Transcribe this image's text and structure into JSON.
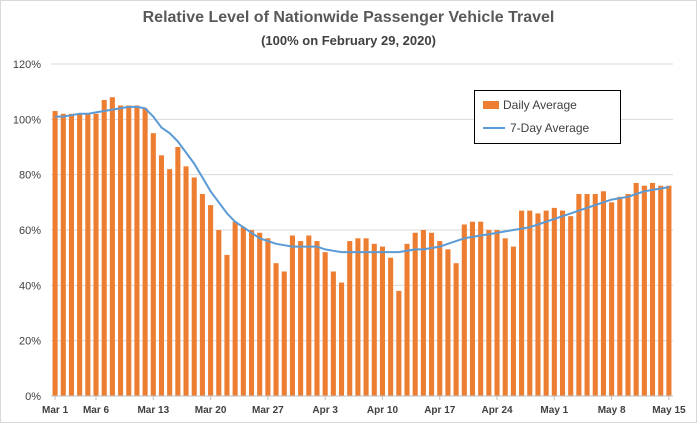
{
  "chart_data": {
    "type": "bar",
    "title": "Relative Level of Nationwide Passenger Vehicle Travel",
    "subtitle": "(100% on February 29, 2020)",
    "ylim": [
      0,
      120
    ],
    "yticks": [
      0,
      20,
      40,
      60,
      80,
      100,
      120
    ],
    "ytick_labels": [
      "0%",
      "20%",
      "40%",
      "60%",
      "80%",
      "100%",
      "120%"
    ],
    "xtick_labels": [
      {
        "label": "Mar 1",
        "index": 0
      },
      {
        "label": "Mar 6",
        "index": 5
      },
      {
        "label": "Mar 13",
        "index": 12
      },
      {
        "label": "Mar 20",
        "index": 19
      },
      {
        "label": "Mar 27",
        "index": 26
      },
      {
        "label": "Apr 3",
        "index": 33
      },
      {
        "label": "Apr 10",
        "index": 40
      },
      {
        "label": "Apr 17",
        "index": 47
      },
      {
        "label": "Apr 24",
        "index": 54
      },
      {
        "label": "May 1",
        "index": 61
      },
      {
        "label": "May 8",
        "index": 68
      },
      {
        "label": "May 15",
        "index": 75
      }
    ],
    "grid": true,
    "legend_position": "top-right",
    "series": [
      {
        "name": "Daily Average",
        "kind": "bar",
        "color": "#ED7D31",
        "values": [
          103,
          102,
          102,
          102,
          102,
          102,
          107,
          108,
          105,
          105,
          105,
          104,
          95,
          87,
          82,
          90,
          83,
          79,
          73,
          69,
          60,
          51,
          63,
          61,
          60,
          59,
          57,
          48,
          45,
          58,
          56,
          58,
          56,
          52,
          45,
          41,
          56,
          57,
          57,
          55,
          54,
          50,
          38,
          55,
          59,
          60,
          59,
          56,
          53,
          48,
          62,
          63,
          63,
          60,
          60,
          57,
          54,
          67,
          67,
          66,
          67,
          68,
          67,
          65,
          73,
          73,
          73,
          74,
          70,
          72,
          73,
          77,
          76,
          77,
          76,
          76
        ]
      },
      {
        "name": "7-Day Average",
        "kind": "line",
        "color": "#5B9BD5",
        "values": [
          101,
          101,
          101.5,
          102,
          102,
          102.5,
          103,
          103.5,
          104,
          104.5,
          104.5,
          104,
          101,
          97,
          95,
          92,
          88,
          84,
          79,
          74,
          70,
          66,
          63,
          61,
          59,
          57,
          56,
          55,
          54.5,
          54,
          54,
          54,
          54,
          53,
          52.5,
          52,
          52,
          52,
          52,
          52,
          52,
          52,
          52,
          52.5,
          53,
          53,
          53.5,
          54,
          55,
          56,
          57,
          57.5,
          58,
          58.5,
          59,
          59.5,
          60,
          60.5,
          61,
          62,
          63,
          64,
          65,
          66,
          67,
          68,
          69,
          70,
          71,
          71.5,
          72,
          73,
          74,
          74.5,
          75,
          75.5
        ]
      }
    ]
  }
}
